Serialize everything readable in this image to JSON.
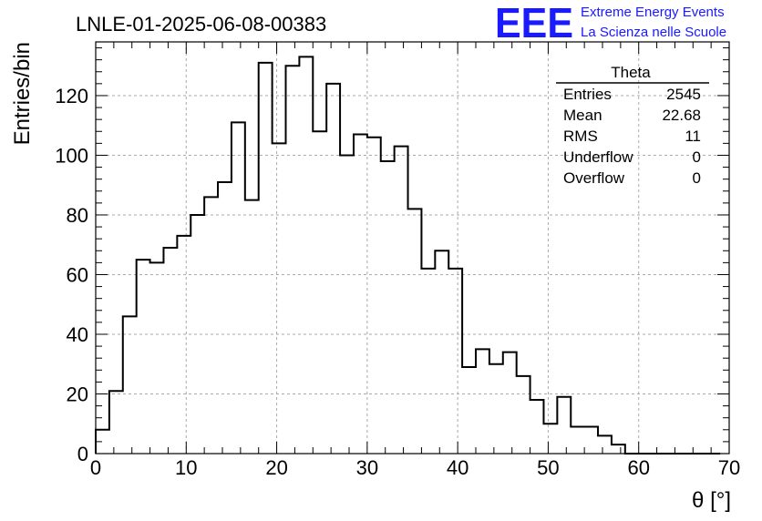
{
  "colors": {
    "logo": "#1a1aff",
    "line": "#000000",
    "grid": "#aaaaaa"
  },
  "logo": {
    "mark": "EEE",
    "line1": "Extreme Energy Events",
    "line2": "La Scienza nelle Scuole"
  },
  "stats": {
    "title": "Theta",
    "rows": [
      {
        "label": "Entries",
        "value": "2545"
      },
      {
        "label": "Mean",
        "value": "22.68"
      },
      {
        "label": "RMS",
        "value": "11"
      },
      {
        "label": "Underflow",
        "value": "0"
      },
      {
        "label": "Overflow",
        "value": "0"
      }
    ]
  },
  "chart_data": {
    "type": "histogram",
    "title": "LNLE-01-2025-06-08-00383",
    "xlabel": "θ [°]",
    "ylabel": "Entries/bin",
    "xlim": [
      0,
      70
    ],
    "ylim": [
      0,
      138
    ],
    "xticks": [
      0,
      10,
      20,
      30,
      40,
      50,
      60,
      70
    ],
    "yticks": [
      0,
      20,
      40,
      60,
      80,
      100,
      120
    ],
    "grid": true,
    "bin_width": 1.5,
    "bin_edges_start": 0,
    "values": [
      8,
      21,
      46,
      65,
      64,
      69,
      73,
      80,
      86,
      91,
      111,
      85,
      131,
      104,
      130,
      133,
      108,
      124,
      100,
      107,
      106,
      98,
      103,
      82,
      62,
      68,
      62,
      29,
      35,
      30,
      34,
      26,
      18,
      10,
      19,
      9,
      9,
      6,
      3,
      0,
      0,
      0,
      0,
      0,
      0,
      0
    ]
  }
}
